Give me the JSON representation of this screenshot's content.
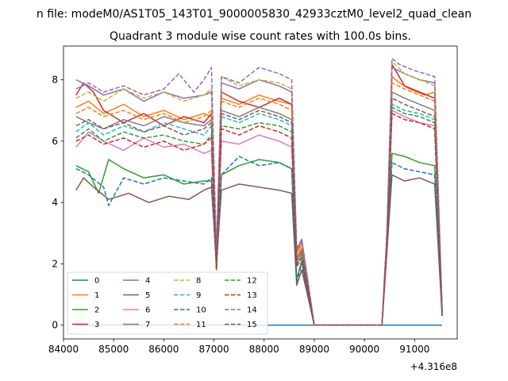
{
  "suptitle": "n file: modeM0/AS1T05_143T01_9000005830_42933cztM0_level2_quad_clean",
  "chart_data": {
    "type": "line",
    "title": "Quadrant 3 module wise count rates with 100.0s bins.",
    "xlabel": "",
    "ylabel": "",
    "x_offset_label": "+4.316e8",
    "xlim": [
      84000,
      91850
    ],
    "ylim": [
      -0.45,
      9.1
    ],
    "x_ticks": [
      84000,
      85000,
      86000,
      87000,
      88000,
      89000,
      90000,
      91000
    ],
    "x_tick_labels": [
      "84000",
      "85000",
      "86000",
      "87000",
      "88000",
      "89000",
      "90000",
      "91000"
    ],
    "y_ticks": [
      0,
      2,
      4,
      6,
      8
    ],
    "y_tick_labels": [
      "0",
      "2",
      "4",
      "6",
      "8"
    ],
    "grid": false,
    "legend_placement": "lower-left",
    "legend_columns": 4,
    "series": [
      {
        "name": "0",
        "color": "#1f77b4",
        "dash": "solid",
        "x": [
          84250,
          91550
        ],
        "y": [
          0,
          0
        ]
      },
      {
        "name": "1",
        "color": "#ff7f0e",
        "dash": "solid",
        "x": [
          84250,
          84500,
          84800,
          85200,
          85600,
          86000,
          86400,
          86800,
          86950,
          87050,
          87150,
          87500,
          87900,
          88300,
          88550,
          88650,
          88750,
          88850,
          89000,
          90350,
          90450,
          90550,
          90700,
          90900,
          91200,
          91400,
          91550
        ],
        "y": [
          7.1,
          7.3,
          6.9,
          7.2,
          6.8,
          7.0,
          6.7,
          6.9,
          6.8,
          2.1,
          7.4,
          7.2,
          7.5,
          7.3,
          7.2,
          2.3,
          2.7,
          1.6,
          0,
          0,
          2.8,
          8.1,
          7.9,
          7.7,
          7.5,
          7.6,
          0.4
        ]
      },
      {
        "name": "2",
        "color": "#2ca02c",
        "dash": "solid",
        "x": [
          84250,
          84500,
          84700,
          84900,
          85200,
          85600,
          86000,
          86400,
          86800,
          86950,
          87050,
          87150,
          87500,
          87900,
          88300,
          88550,
          88650,
          88750,
          88850,
          89000,
          90350,
          90450,
          90550,
          90800,
          91100,
          91400,
          91550
        ],
        "y": [
          5.2,
          5.0,
          4.3,
          5.4,
          5.1,
          4.8,
          4.9,
          4.6,
          4.7,
          4.7,
          1.9,
          4.9,
          5.2,
          5.4,
          5.3,
          5.1,
          1.5,
          2.1,
          1.2,
          0,
          0,
          2.6,
          5.6,
          5.5,
          5.3,
          5.2,
          0.3
        ]
      },
      {
        "name": "3",
        "color": "#d62728",
        "dash": "solid",
        "x": [
          84250,
          84400,
          84600,
          84800,
          85200,
          85600,
          86000,
          86400,
          86800,
          86950,
          87050,
          87150,
          87500,
          87900,
          88300,
          88550,
          88650,
          88750,
          88850,
          89000,
          90350,
          90450,
          90550,
          90800,
          91100,
          91400,
          91550
        ],
        "y": [
          7.5,
          7.9,
          7.6,
          7.0,
          6.6,
          6.9,
          6.5,
          6.8,
          6.6,
          6.9,
          2.0,
          7.6,
          7.3,
          7.1,
          7.4,
          7.2,
          2.2,
          2.5,
          1.5,
          0,
          0,
          2.9,
          8.5,
          7.8,
          7.6,
          7.4,
          0.4
        ]
      },
      {
        "name": "4",
        "color": "#9467bd",
        "dash": "solid",
        "x": [
          84250,
          84500,
          84800,
          85200,
          85600,
          86000,
          86400,
          86800,
          86950,
          87050,
          87150,
          87500,
          87900,
          88300,
          88550,
          88650,
          88750,
          88850,
          89000,
          90350,
          90450,
          90550,
          90800,
          91100,
          91400,
          91550
        ],
        "y": [
          8.0,
          7.8,
          7.5,
          7.7,
          7.3,
          7.6,
          7.4,
          7.5,
          7.6,
          2.3,
          7.9,
          7.7,
          8.0,
          7.8,
          7.6,
          2.4,
          2.8,
          1.7,
          0,
          0,
          3.0,
          8.4,
          8.2,
          8.0,
          7.9,
          0.5
        ]
      },
      {
        "name": "5",
        "color": "#8c564b",
        "dash": "solid",
        "x": [
          84250,
          84400,
          84600,
          84900,
          85300,
          85700,
          86100,
          86500,
          86800,
          86950,
          87050,
          87150,
          87500,
          87900,
          88300,
          88550,
          88650,
          88750,
          88850,
          89000,
          90350,
          90450,
          90550,
          90800,
          91100,
          91400,
          91550
        ],
        "y": [
          4.4,
          4.8,
          4.5,
          4.1,
          4.3,
          4.0,
          4.2,
          4.1,
          4.4,
          4.5,
          2.0,
          4.4,
          4.6,
          4.5,
          4.4,
          4.3,
          1.3,
          1.8,
          1.1,
          0,
          0,
          2.4,
          4.9,
          4.7,
          4.8,
          4.6,
          0.3
        ]
      },
      {
        "name": "6",
        "color": "#e377c2",
        "dash": "solid",
        "x": [
          84250,
          84500,
          84800,
          85200,
          85600,
          86000,
          86400,
          86800,
          86950,
          87050,
          87150,
          87500,
          87900,
          88300,
          88550,
          88650,
          88750,
          88850,
          89000,
          90350,
          90450,
          90550,
          90800,
          91100,
          91400,
          91550
        ],
        "y": [
          5.8,
          6.3,
          6.0,
          5.7,
          6.1,
          5.8,
          5.9,
          5.6,
          5.7,
          1.8,
          6.0,
          5.9,
          6.2,
          6.0,
          5.8,
          2.0,
          2.3,
          1.4,
          0,
          0,
          2.5,
          7.0,
          6.8,
          6.6,
          6.5,
          0.4
        ]
      },
      {
        "name": "7",
        "color": "#7f7f7f",
        "dash": "solid",
        "x": [
          84250,
          84500,
          84800,
          85200,
          85600,
          86000,
          86400,
          86800,
          86950,
          87050,
          87150,
          87500,
          87900,
          88300,
          88550,
          88650,
          88750,
          88850,
          89000,
          90350,
          90450,
          90550,
          90800,
          91100,
          91400,
          91550
        ],
        "y": [
          6.8,
          6.6,
          6.4,
          6.7,
          6.5,
          6.8,
          6.6,
          6.5,
          6.7,
          2.0,
          7.0,
          6.8,
          7.1,
          6.9,
          6.7,
          2.1,
          2.4,
          1.5,
          0,
          0,
          2.7,
          7.6,
          7.4,
          7.2,
          7.0,
          0.4
        ]
      },
      {
        "name": "8",
        "color": "#bcbd22",
        "dash": "dashed",
        "x": [
          84250,
          84500,
          84800,
          85200,
          85600,
          86000,
          86400,
          86800,
          86950,
          87050,
          87150,
          87500,
          87900,
          88300,
          88550,
          88650,
          88750,
          88850,
          89000,
          90350,
          90450,
          90550,
          90800,
          91100,
          91400,
          91550
        ],
        "y": [
          7.4,
          7.6,
          7.3,
          7.7,
          7.4,
          7.6,
          7.3,
          7.5,
          7.7,
          2.2,
          8.1,
          7.8,
          8.0,
          7.9,
          7.7,
          2.3,
          2.6,
          1.6,
          0,
          0,
          2.9,
          8.6,
          8.2,
          8.0,
          7.8,
          0.5
        ]
      },
      {
        "name": "9",
        "color": "#17becf",
        "dash": "dashed",
        "x": [
          84250,
          84500,
          84800,
          85200,
          85600,
          86000,
          86400,
          86800,
          86950,
          87050,
          87150,
          87500,
          87900,
          88300,
          88550,
          88650,
          88750,
          88850,
          89000,
          90350,
          90450,
          90550,
          90800,
          91100,
          91400,
          91550
        ],
        "y": [
          6.3,
          6.6,
          6.2,
          6.5,
          6.3,
          6.6,
          6.4,
          6.2,
          6.5,
          1.9,
          6.8,
          6.6,
          6.9,
          6.7,
          6.5,
          2.0,
          2.3,
          1.4,
          0,
          0,
          2.6,
          7.2,
          7.0,
          6.9,
          6.7,
          0.4
        ]
      },
      {
        "name": "10",
        "color": "#1f77b4",
        "dash": "dashed",
        "x": [
          84250,
          84500,
          84800,
          84900,
          85200,
          85600,
          86000,
          86400,
          86800,
          86950,
          87050,
          87150,
          87500,
          87900,
          88300,
          88550,
          88650,
          88750,
          88850,
          89000,
          90350,
          90450,
          90550,
          90800,
          91100,
          91400,
          91550
        ],
        "y": [
          5.1,
          4.9,
          4.5,
          3.9,
          4.8,
          4.6,
          4.8,
          4.7,
          4.6,
          4.8,
          1.8,
          4.9,
          5.5,
          5.2,
          5.3,
          5.1,
          1.4,
          2.0,
          1.2,
          0,
          0,
          2.5,
          5.3,
          5.1,
          5.0,
          4.9,
          0.3
        ]
      },
      {
        "name": "11",
        "color": "#ff7f0e",
        "dash": "dashed",
        "x": [
          84250,
          84500,
          84800,
          85200,
          85600,
          86000,
          86400,
          86800,
          86950,
          87050,
          87150,
          87500,
          87900,
          88300,
          88550,
          88650,
          88750,
          88850,
          89000,
          90350,
          90450,
          90550,
          90800,
          91100,
          91400,
          91550
        ],
        "y": [
          6.9,
          7.1,
          6.8,
          7.0,
          6.7,
          6.9,
          6.6,
          6.8,
          7.0,
          2.1,
          7.3,
          7.1,
          7.4,
          7.2,
          7.0,
          2.2,
          2.5,
          1.5,
          0,
          0,
          2.8,
          7.9,
          7.7,
          7.5,
          7.3,
          0.4
        ]
      },
      {
        "name": "12",
        "color": "#2ca02c",
        "dash": "dashed",
        "x": [
          84250,
          84500,
          84800,
          85200,
          85600,
          86000,
          86400,
          86800,
          86950,
          87050,
          87150,
          87500,
          87900,
          88300,
          88550,
          88650,
          88750,
          88850,
          89000,
          90350,
          90450,
          90550,
          90800,
          91100,
          91400,
          91550
        ],
        "y": [
          6.1,
          6.4,
          6.0,
          6.3,
          6.1,
          6.2,
          6.0,
          5.9,
          6.2,
          1.9,
          6.5,
          6.4,
          6.6,
          6.5,
          6.3,
          2.0,
          2.2,
          1.4,
          0,
          0,
          2.6,
          7.1,
          6.9,
          6.8,
          6.6,
          0.4
        ]
      },
      {
        "name": "13",
        "color": "#d62728",
        "dash": "dashed",
        "x": [
          84250,
          84500,
          84800,
          85200,
          85600,
          86000,
          86400,
          86800,
          86950,
          87050,
          87150,
          87500,
          87900,
          88300,
          88550,
          88650,
          88750,
          88850,
          89000,
          90350,
          90450,
          90550,
          90800,
          91100,
          91400,
          91550
        ],
        "y": [
          6.0,
          6.2,
          5.9,
          6.1,
          5.8,
          6.0,
          5.7,
          5.9,
          6.1,
          1.8,
          6.4,
          6.2,
          6.5,
          6.3,
          6.1,
          1.9,
          2.2,
          1.3,
          0,
          0,
          2.5,
          6.9,
          6.7,
          6.6,
          6.4,
          0.3
        ]
      },
      {
        "name": "14",
        "color": "#9467bd",
        "dash": "dashed",
        "x": [
          84250,
          84500,
          84800,
          85200,
          85600,
          86000,
          86300,
          86600,
          86800,
          86950,
          87050,
          87150,
          87500,
          87900,
          88300,
          88550,
          88650,
          88750,
          88850,
          89000,
          90350,
          90450,
          90550,
          90700,
          91000,
          91400,
          91550
        ],
        "y": [
          7.7,
          7.9,
          7.6,
          7.8,
          7.5,
          7.7,
          8.2,
          7.6,
          8.0,
          8.4,
          2.4,
          8.1,
          7.9,
          8.4,
          8.2,
          8.0,
          2.5,
          2.8,
          1.7,
          0,
          0,
          3.1,
          8.7,
          8.5,
          8.3,
          8.1,
          0.5
        ]
      },
      {
        "name": "15",
        "color": "#8c564b",
        "dash": "dashed",
        "x": [
          84250,
          84500,
          84800,
          85200,
          85600,
          86000,
          86400,
          86800,
          86950,
          87050,
          87150,
          87500,
          87900,
          88300,
          88550,
          88650,
          88750,
          88850,
          89000,
          90350,
          90450,
          90550,
          90800,
          91100,
          91400,
          91550
        ],
        "y": [
          6.5,
          6.7,
          6.4,
          6.6,
          6.3,
          6.5,
          6.2,
          6.4,
          6.6,
          2.0,
          6.9,
          6.7,
          7.0,
          6.8,
          6.6,
          2.1,
          2.4,
          1.5,
          0,
          0,
          2.7,
          7.4,
          7.2,
          7.0,
          6.8,
          0.4
        ]
      }
    ]
  }
}
